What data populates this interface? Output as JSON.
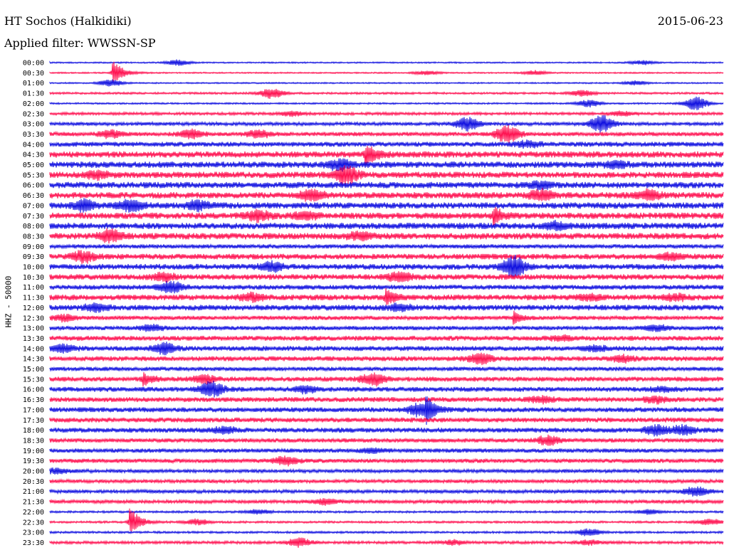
{
  "header": {
    "station": "HT Sochos (Halkidiki)",
    "date": "2015-06-23",
    "filter": "Applied filter: WWSSN-SP"
  },
  "chart_data": {
    "type": "line",
    "title": "HT Sochos (Halkidiki)",
    "subtitle": "Applied filter: WWSSN-SP",
    "ylabel": "HHZ - 50000",
    "xlabel": "",
    "grid": false,
    "legend": "none",
    "series_colors": [
      "#1010e0",
      "#ff1050"
    ],
    "row_labels": [
      "00:00",
      "00:30",
      "01:00",
      "01:30",
      "02:00",
      "02:30",
      "03:00",
      "03:30",
      "04:00",
      "04:30",
      "05:00",
      "05:30",
      "06:00",
      "06:30",
      "07:00",
      "07:30",
      "08:00",
      "08:30",
      "09:00",
      "09:30",
      "10:00",
      "10:30",
      "11:00",
      "11:30",
      "12:00",
      "12:30",
      "13:00",
      "13:30",
      "14:00",
      "14:30",
      "15:00",
      "15:30",
      "16:00",
      "16:30",
      "17:00",
      "17:30",
      "18:00",
      "18:30",
      "19:00",
      "19:30",
      "20:00",
      "20:30",
      "21:00",
      "21:30",
      "22:00",
      "22:30",
      "23:00",
      "23:30"
    ],
    "row_noise": [
      1,
      1,
      1,
      1.5,
      1.2,
      2,
      2.5,
      3,
      3.5,
      4.5,
      4.5,
      4.5,
      4.5,
      4.5,
      4.5,
      4.5,
      4.5,
      4.5,
      3,
      4,
      4,
      4,
      3.5,
      4,
      4,
      3,
      3,
      3.5,
      3.5,
      3.5,
      3,
      3.5,
      3.5,
      3.5,
      3.5,
      3.5,
      3.5,
      3,
      3,
      3,
      2.5,
      2.5,
      2.5,
      2.5,
      1.5,
      1.5,
      1.5,
      2
    ],
    "events": [
      {
        "row": 0,
        "t": 0.19,
        "amp": 4
      },
      {
        "row": 0,
        "t": 0.88,
        "amp": 3
      },
      {
        "row": 1,
        "t": 0.095,
        "amp": 18,
        "spike": true
      },
      {
        "row": 1,
        "t": 0.56,
        "amp": 3
      },
      {
        "row": 1,
        "t": 0.72,
        "amp": 3
      },
      {
        "row": 2,
        "t": 0.09,
        "amp": 5
      },
      {
        "row": 2,
        "t": 0.87,
        "amp": 3
      },
      {
        "row": 3,
        "t": 0.33,
        "amp": 7
      },
      {
        "row": 3,
        "t": 0.79,
        "amp": 4
      },
      {
        "row": 4,
        "t": 0.8,
        "amp": 5
      },
      {
        "row": 4,
        "t": 0.96,
        "amp": 10
      },
      {
        "row": 5,
        "t": 0.36,
        "amp": 3
      },
      {
        "row": 5,
        "t": 0.85,
        "amp": 3
      },
      {
        "row": 6,
        "t": 0.62,
        "amp": 9
      },
      {
        "row": 6,
        "t": 0.82,
        "amp": 12
      },
      {
        "row": 7,
        "t": 0.09,
        "amp": 5
      },
      {
        "row": 7,
        "t": 0.21,
        "amp": 6
      },
      {
        "row": 7,
        "t": 0.31,
        "amp": 5
      },
      {
        "row": 7,
        "t": 0.68,
        "amp": 12
      },
      {
        "row": 8,
        "t": 0.71,
        "amp": 4
      },
      {
        "row": 9,
        "t": 0.47,
        "amp": 14,
        "spike": true
      },
      {
        "row": 10,
        "t": 0.43,
        "amp": 7
      },
      {
        "row": 10,
        "t": 0.84,
        "amp": 4
      },
      {
        "row": 11,
        "t": 0.07,
        "amp": 5
      },
      {
        "row": 11,
        "t": 0.44,
        "amp": 12
      },
      {
        "row": 12,
        "t": 0.73,
        "amp": 4
      },
      {
        "row": 13,
        "t": 0.39,
        "amp": 7
      },
      {
        "row": 13,
        "t": 0.73,
        "amp": 7
      },
      {
        "row": 13,
        "t": 0.89,
        "amp": 6
      },
      {
        "row": 14,
        "t": 0.05,
        "amp": 7
      },
      {
        "row": 14,
        "t": 0.12,
        "amp": 7
      },
      {
        "row": 14,
        "t": 0.22,
        "amp": 6
      },
      {
        "row": 15,
        "t": 0.31,
        "amp": 7
      },
      {
        "row": 15,
        "t": 0.38,
        "amp": 5
      },
      {
        "row": 15,
        "t": 0.66,
        "amp": 12,
        "spike": true
      },
      {
        "row": 16,
        "t": 0.75,
        "amp": 5
      },
      {
        "row": 17,
        "t": 0.09,
        "amp": 8
      },
      {
        "row": 17,
        "t": 0.46,
        "amp": 5
      },
      {
        "row": 19,
        "t": 0.05,
        "amp": 7
      },
      {
        "row": 19,
        "t": 0.92,
        "amp": 4
      },
      {
        "row": 20,
        "t": 0.33,
        "amp": 6
      },
      {
        "row": 20,
        "t": 0.69,
        "amp": 14
      },
      {
        "row": 21,
        "t": 0.17,
        "amp": 5
      },
      {
        "row": 21,
        "t": 0.52,
        "amp": 6
      },
      {
        "row": 22,
        "t": 0.18,
        "amp": 7
      },
      {
        "row": 23,
        "t": 0.3,
        "amp": 5
      },
      {
        "row": 23,
        "t": 0.5,
        "amp": 12,
        "spike": true
      },
      {
        "row": 23,
        "t": 0.8,
        "amp": 4
      },
      {
        "row": 23,
        "t": 0.93,
        "amp": 4
      },
      {
        "row": 24,
        "t": 0.07,
        "amp": 5
      },
      {
        "row": 24,
        "t": 0.52,
        "amp": 4
      },
      {
        "row": 25,
        "t": 0.02,
        "amp": 4
      },
      {
        "row": 25,
        "t": 0.69,
        "amp": 8,
        "spike": true
      },
      {
        "row": 26,
        "t": 0.15,
        "amp": 4
      },
      {
        "row": 26,
        "t": 0.9,
        "amp": 4
      },
      {
        "row": 27,
        "t": 0.76,
        "amp": 3
      },
      {
        "row": 28,
        "t": 0.02,
        "amp": 5
      },
      {
        "row": 28,
        "t": 0.17,
        "amp": 7
      },
      {
        "row": 28,
        "t": 0.81,
        "amp": 3
      },
      {
        "row": 29,
        "t": 0.64,
        "amp": 7
      },
      {
        "row": 29,
        "t": 0.85,
        "amp": 4
      },
      {
        "row": 31,
        "t": 0.14,
        "amp": 8,
        "spike": true
      },
      {
        "row": 31,
        "t": 0.23,
        "amp": 5
      },
      {
        "row": 31,
        "t": 0.48,
        "amp": 8
      },
      {
        "row": 32,
        "t": 0.24,
        "amp": 10
      },
      {
        "row": 32,
        "t": 0.38,
        "amp": 4
      },
      {
        "row": 32,
        "t": 0.91,
        "amp": 3
      },
      {
        "row": 33,
        "t": 0.73,
        "amp": 4
      },
      {
        "row": 33,
        "t": 0.9,
        "amp": 4
      },
      {
        "row": 34,
        "t": 0.55,
        "amp": 9
      },
      {
        "row": 34,
        "t": 0.56,
        "amp": 14,
        "spike": true
      },
      {
        "row": 36,
        "t": 0.26,
        "amp": 4
      },
      {
        "row": 36,
        "t": 0.9,
        "amp": 6
      },
      {
        "row": 36,
        "t": 0.94,
        "amp": 6
      },
      {
        "row": 37,
        "t": 0.74,
        "amp": 6
      },
      {
        "row": 38,
        "t": 0.48,
        "amp": 3
      },
      {
        "row": 39,
        "t": 0.35,
        "amp": 6
      },
      {
        "row": 40,
        "t": 0.01,
        "amp": 3
      },
      {
        "row": 42,
        "t": 0.96,
        "amp": 6
      },
      {
        "row": 43,
        "t": 0.41,
        "amp": 4
      },
      {
        "row": 44,
        "t": 0.31,
        "amp": 3
      },
      {
        "row": 44,
        "t": 0.89,
        "amp": 3
      },
      {
        "row": 45,
        "t": 0.12,
        "amp": 22,
        "spike": true
      },
      {
        "row": 45,
        "t": 0.22,
        "amp": 4
      },
      {
        "row": 45,
        "t": 0.98,
        "amp": 4
      },
      {
        "row": 46,
        "t": 0.8,
        "amp": 5
      },
      {
        "row": 47,
        "t": 0.37,
        "amp": 6
      },
      {
        "row": 47,
        "t": 0.6,
        "amp": 3
      },
      {
        "row": 47,
        "t": 0.8,
        "amp": 3
      }
    ]
  }
}
